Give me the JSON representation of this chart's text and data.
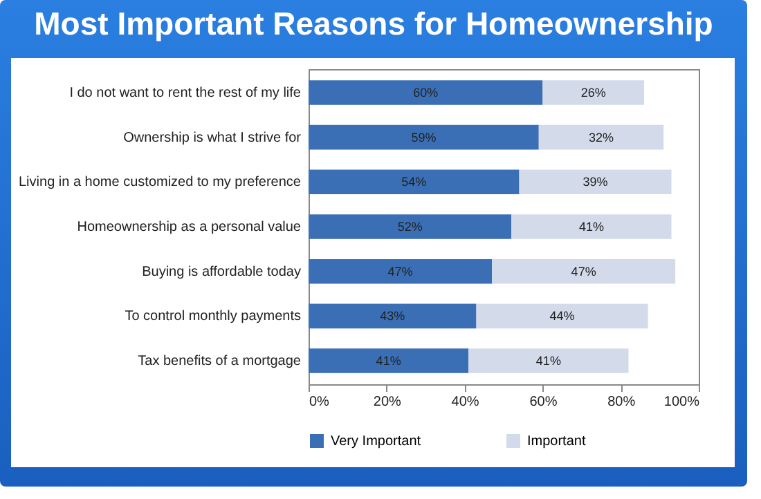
{
  "chart_data": {
    "type": "bar",
    "orientation": "horizontal",
    "stacked": true,
    "title": "Most Important Reasons for Homeownership",
    "categories": [
      "I do not want to rent the rest of my life",
      "Ownership is what I strive for",
      "Living in a home customized to my preference",
      "Homeownership as a personal value",
      "Buying is affordable today",
      "To control monthly payments",
      "Tax benefits of a mortgage"
    ],
    "series": [
      {
        "name": "Very Important",
        "color": "#3a6fb5",
        "values": [
          60,
          59,
          54,
          52,
          47,
          43,
          41
        ],
        "value_labels": [
          "60%",
          "59%",
          "54%",
          "52%",
          "47%",
          "43%",
          "41%"
        ]
      },
      {
        "name": "Important",
        "color": "#d3dbeb",
        "values": [
          26,
          32,
          39,
          41,
          47,
          44,
          41
        ],
        "value_labels": [
          "26%",
          "32%",
          "39%",
          "41%",
          "47%",
          "44%",
          "41%"
        ]
      }
    ],
    "xlim": [
      0,
      100
    ],
    "xticks": [
      {
        "value": 0,
        "label": "0%"
      },
      {
        "value": 20,
        "label": "20%"
      },
      {
        "value": 40,
        "label": "40%"
      },
      {
        "value": 60,
        "label": "60%"
      },
      {
        "value": 80,
        "label": "80%"
      },
      {
        "value": 100,
        "label": "100%"
      }
    ],
    "grid": false,
    "legend": "bottom"
  }
}
